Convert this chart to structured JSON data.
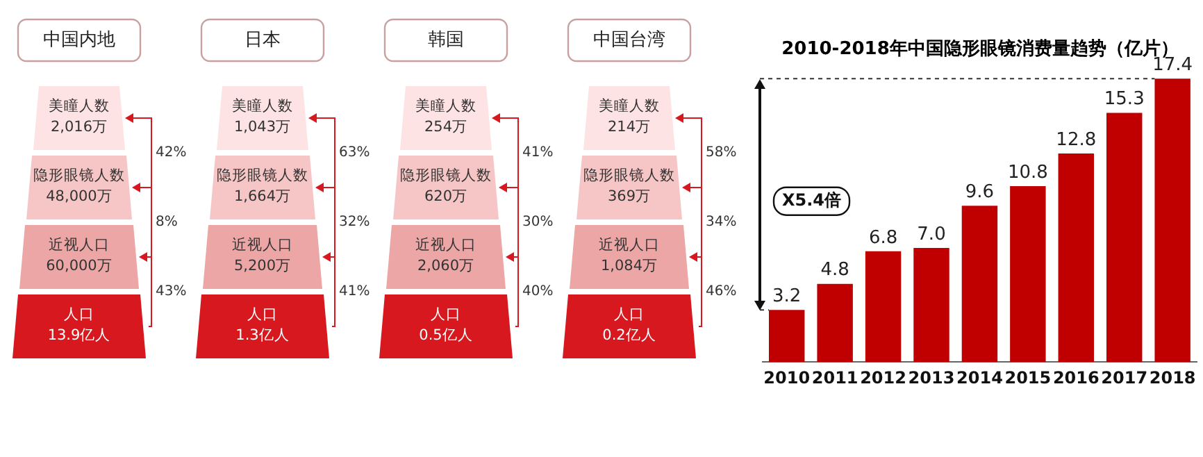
{
  "chart_data": [
    {
      "type": "other",
      "title": "中国内地",
      "categories": [
        "美瞳人数",
        "隐形眼镜人数",
        "近视人口",
        "人口"
      ],
      "value_labels": [
        "2,016万",
        "48,000万",
        "60,000万",
        "13.9亿人"
      ],
      "colors": [
        "#fde3e3",
        "#f6c6c6",
        "#eca6a6",
        "#d7191f"
      ],
      "annotations": [
        "42%",
        "8%",
        "43%"
      ]
    },
    {
      "type": "other",
      "title": "日本",
      "categories": [
        "美瞳人数",
        "隐形眼镜人数",
        "近视人口",
        "人口"
      ],
      "value_labels": [
        "1,043万",
        "1,664万",
        "5,200万",
        "1.3亿人"
      ],
      "colors": [
        "#fde3e3",
        "#f6c6c6",
        "#eca6a6",
        "#d7191f"
      ],
      "annotations": [
        "63%",
        "32%",
        "41%"
      ]
    },
    {
      "type": "other",
      "title": "韩国",
      "categories": [
        "美瞳人数",
        "隐形眼镜人数",
        "近视人口",
        "人口"
      ],
      "value_labels": [
        "254万",
        "620万",
        "2,060万",
        "0.5亿人"
      ],
      "colors": [
        "#fde3e3",
        "#f6c6c6",
        "#eca6a6",
        "#d7191f"
      ],
      "annotations": [
        "41%",
        "30%",
        "40%"
      ]
    },
    {
      "type": "other",
      "title": "中国台湾",
      "categories": [
        "美瞳人数",
        "隐形眼镜人数",
        "近视人口",
        "人口"
      ],
      "value_labels": [
        "214万",
        "369万",
        "1,084万",
        "0.2亿人"
      ],
      "colors": [
        "#fde3e3",
        "#f6c6c6",
        "#eca6a6",
        "#d7191f"
      ],
      "annotations": [
        "58%",
        "34%",
        "46%"
      ]
    },
    {
      "type": "bar",
      "title": "2010-2018年中国隐形眼镜消费量趋势（亿片）",
      "categories": [
        "2010",
        "2011",
        "2012",
        "2013",
        "2014",
        "2015",
        "2016",
        "2017",
        "2018"
      ],
      "values": [
        3.2,
        4.8,
        6.8,
        7.0,
        9.6,
        10.8,
        12.8,
        15.3,
        17.4
      ],
      "color": "#c00000",
      "value_labels": [
        "3.2",
        "4.8",
        "6.8",
        "7.0",
        "9.6",
        "10.8",
        "12.8",
        "15.3",
        "17.4"
      ],
      "annotations": [
        "X5.4倍"
      ]
    }
  ]
}
